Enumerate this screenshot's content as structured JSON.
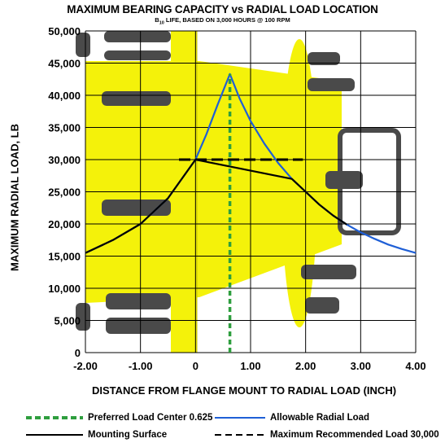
{
  "chart_data": {
    "type": "line",
    "title": "MAXIMUM BEARING CAPACITY vs RADIAL LOAD LOCATION",
    "subtitle_pre": "B",
    "subtitle_sub": "10",
    "subtitle_post": " LIFE, BASED ON 3,000 HOURS @ 100 RPM",
    "xlabel": "DISTANCE FROM FLANGE MOUNT TO RADIAL LOAD (INCH)",
    "ylabel": "MAXIMUM RADIAL LOAD, LB",
    "xlim": [
      -2.0,
      4.0
    ],
    "ylim": [
      0,
      50000
    ],
    "x_ticks": [
      -2.0,
      -1.0,
      0,
      1.0,
      2.0,
      3.0,
      4.0
    ],
    "x_tick_labels": [
      "-2.00",
      "-1.00",
      "0",
      "1.00",
      "2.00",
      "3.00",
      "4.00"
    ],
    "y_ticks": [
      0,
      5000,
      10000,
      15000,
      20000,
      25000,
      30000,
      35000,
      40000,
      45000,
      50000
    ],
    "y_tick_labels": [
      "0",
      "5,000",
      "10,000",
      "15,000",
      "20,000",
      "25,000",
      "30,000",
      "35,000",
      "40,000",
      "45,000",
      "50,000"
    ],
    "grid": true,
    "legend_position": "bottom",
    "series": [
      {
        "name": "Allowable Radial Load",
        "color": "#1f5fd6",
        "style": "solid",
        "x": [
          -2.0,
          -1.5,
          -1.0,
          -0.5,
          0.0,
          0.2,
          0.4,
          0.625,
          0.8,
          1.0,
          1.25,
          1.5,
          1.75,
          2.0,
          2.25,
          2.5,
          2.75,
          3.0,
          3.25,
          3.5,
          3.75,
          4.0
        ],
        "y": [
          15500,
          17500,
          20000,
          24000,
          30000,
          34000,
          38500,
          43300,
          39500,
          36000,
          32500,
          29500,
          27000,
          25000,
          23000,
          21300,
          19900,
          18700,
          17700,
          16800,
          16100,
          15500
        ]
      },
      {
        "name": "Mounting Surface",
        "color": "#000000",
        "style": "solid",
        "x": [
          -2.0,
          -1.5,
          -1.0,
          -0.5,
          0.0,
          1.75,
          2.0,
          2.25,
          2.5,
          2.75
        ],
        "y": [
          15500,
          17500,
          20000,
          24000,
          30000,
          27000,
          25000,
          23000,
          21300,
          19900
        ]
      },
      {
        "name": "Preferred Load Center 0.625",
        "color": "#2e9e3e",
        "style": "dotted",
        "x": [
          0.625,
          0.625
        ],
        "y": [
          0,
          43300
        ]
      },
      {
        "name": "Maximum Recommended Load 30,000",
        "color": "#000000",
        "style": "dashed",
        "x": [
          -0.3,
          1.95
        ],
        "y": [
          30000,
          30000
        ]
      }
    ],
    "legend": [
      {
        "label": "Preferred Load Center 0.625",
        "color": "#2e9e3e",
        "style": "dotted"
      },
      {
        "label": "Allowable Radial Load",
        "color": "#1f5fd6",
        "style": "solid"
      },
      {
        "label": "Mounting Surface",
        "color": "#000000",
        "style": "solid"
      },
      {
        "label": "Maximum Recommended Load 30,000",
        "color": "#000000",
        "style": "dashed"
      }
    ],
    "background_image": "yellow-hub-flange-bearing"
  }
}
